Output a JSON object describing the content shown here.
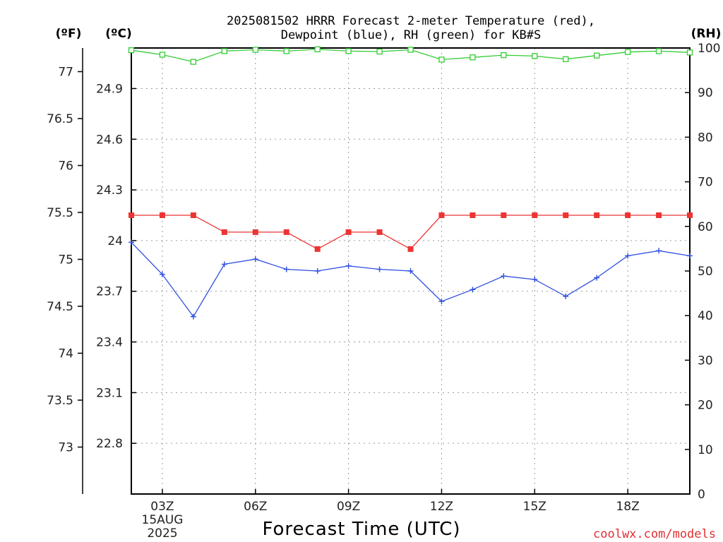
{
  "chart_data": {
    "type": "line",
    "title_line1": "2025081502 HRRR Forecast 2-meter Temperature (red),",
    "title_line2": "Dewpoint (blue), RH (green) for KB#S",
    "xlabel": "Forecast Time (UTC)",
    "credit": "coolwx.com/models",
    "date_label": [
      "15AUG",
      "2025"
    ],
    "unit_labels": {
      "fahrenheit": "(ºF)",
      "celsius": "(ºC)",
      "rh": "(RH)"
    },
    "x": [
      2,
      3,
      4,
      5,
      6,
      7,
      8,
      9,
      10,
      11,
      12,
      13,
      14,
      15,
      16,
      17,
      18,
      19,
      20
    ],
    "x_range": [
      2,
      20
    ],
    "x_ticks": [
      {
        "x": 3,
        "label": "03Z"
      },
      {
        "x": 6,
        "label": "06Z"
      },
      {
        "x": 9,
        "label": "09Z"
      },
      {
        "x": 12,
        "label": "12Z"
      },
      {
        "x": 15,
        "label": "15Z"
      },
      {
        "x": 18,
        "label": "18Z"
      }
    ],
    "celsius_range": [
      22.5,
      25.14
    ],
    "celsius_ticks": [
      "22.8",
      "23.1",
      "23.4",
      "23.7",
      "24",
      "24.3",
      "24.6",
      "24.9"
    ],
    "fahrenheit_ticks": [
      "73",
      "73.5",
      "74",
      "74.5",
      "75",
      "75.5",
      "76",
      "76.5",
      "77"
    ],
    "rh_range": [
      0,
      100
    ],
    "rh_ticks": [
      0,
      10,
      20,
      30,
      40,
      50,
      60,
      70,
      80,
      90,
      100
    ],
    "grid": true,
    "series": [
      {
        "axis": "temp",
        "color": "#ee3333",
        "marker": "filled-square",
        "values": [
          24.15,
          24.15,
          24.15,
          24.05,
          24.05,
          24.05,
          23.95,
          24.05,
          24.05,
          23.95,
          24.15,
          24.15,
          24.15,
          24.15,
          24.15,
          24.15,
          24.15,
          24.15,
          24.15
        ]
      },
      {
        "axis": "temp",
        "color": "#2f4ee0",
        "marker": "plus",
        "values": [
          23.99,
          23.8,
          23.55,
          23.86,
          23.89,
          23.83,
          23.82,
          23.85,
          23.83,
          23.82,
          23.64,
          23.71,
          23.79,
          23.77,
          23.67,
          23.78,
          23.91,
          23.94,
          23.91
        ]
      },
      {
        "axis": "rh",
        "color": "#33cc33",
        "marker": "open-square",
        "values": [
          99.5,
          98.5,
          96.9,
          99.3,
          99.6,
          99.3,
          99.7,
          99.3,
          99.2,
          99.6,
          97.4,
          97.9,
          98.4,
          98.2,
          97.5,
          98.3,
          99.1,
          99.3,
          99.0
        ]
      }
    ]
  }
}
